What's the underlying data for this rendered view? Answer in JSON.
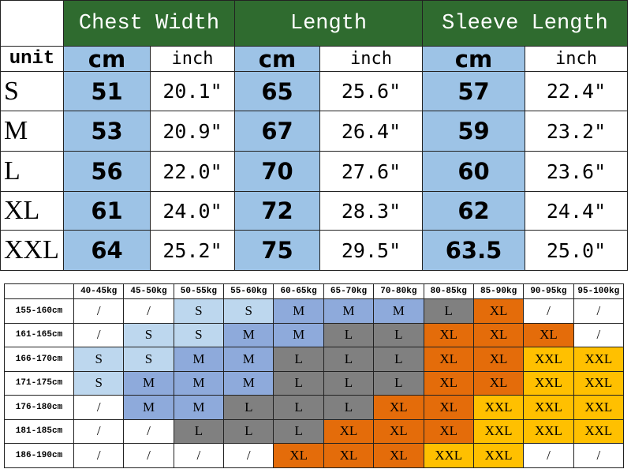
{
  "size_table": {
    "groups": [
      "Chest Width",
      "Length",
      "Sleeve Length"
    ],
    "unit_label": "unit",
    "units": [
      "cm",
      "inch",
      "cm",
      "inch",
      "cm",
      "inch"
    ],
    "rows": [
      [
        "S",
        "51",
        "20.1\"",
        "65",
        "25.6\"",
        "57",
        "22.4\""
      ],
      [
        "M",
        "53",
        "20.9\"",
        "67",
        "26.4\"",
        "59",
        "23.2\""
      ],
      [
        "L",
        "56",
        "22.0\"",
        "70",
        "27.6\"",
        "60",
        "23.6\""
      ],
      [
        "XL",
        "61",
        "24.0\"",
        "72",
        "28.3\"",
        "62",
        "24.4\""
      ],
      [
        "XXL",
        "64",
        "25.2\"",
        "75",
        "29.5\"",
        "63.5",
        "25.0\""
      ]
    ]
  },
  "fit_table": {
    "weights": [
      "40-45kg",
      "45-50kg",
      "50-55kg",
      "55-60kg",
      "60-65kg",
      "65-70kg",
      "70-80kg",
      "80-85kg",
      "85-90kg",
      "90-95kg",
      "95-100kg"
    ],
    "heights": [
      "155-160cm",
      "161-165cm",
      "166-170cm",
      "171-175cm",
      "176-180cm",
      "181-185cm",
      "186-190cm"
    ],
    "cells": [
      [
        "/",
        "/",
        "S",
        "S",
        "M",
        "M",
        "M",
        "L",
        "XL",
        "/",
        "/"
      ],
      [
        "/",
        "S",
        "S",
        "M",
        "M",
        "L",
        "L",
        "XL",
        "XL",
        "XL",
        "/"
      ],
      [
        "S",
        "S",
        "M",
        "M",
        "L",
        "L",
        "L",
        "XL",
        "XL",
        "XXL",
        "XXL"
      ],
      [
        "S",
        "M",
        "M",
        "M",
        "L",
        "L",
        "L",
        "XL",
        "XL",
        "XXL",
        "XXL"
      ],
      [
        "/",
        "M",
        "M",
        "L",
        "L",
        "L",
        "XL",
        "XL",
        "XXL",
        "XXL",
        "XXL"
      ],
      [
        "/",
        "/",
        "L",
        "L",
        "L",
        "XL",
        "XL",
        "XL",
        "XXL",
        "XXL",
        "XXL"
      ],
      [
        "/",
        "/",
        "/",
        "/",
        "XL",
        "XL",
        "XL",
        "XXL",
        "XXL",
        "/",
        "/"
      ]
    ],
    "size_colors": {
      "S": "#bdd7ee",
      "M": "#8eaadb",
      "L": "#808080",
      "XL": "#e46c0a",
      "XXL": "#ffc000"
    }
  }
}
